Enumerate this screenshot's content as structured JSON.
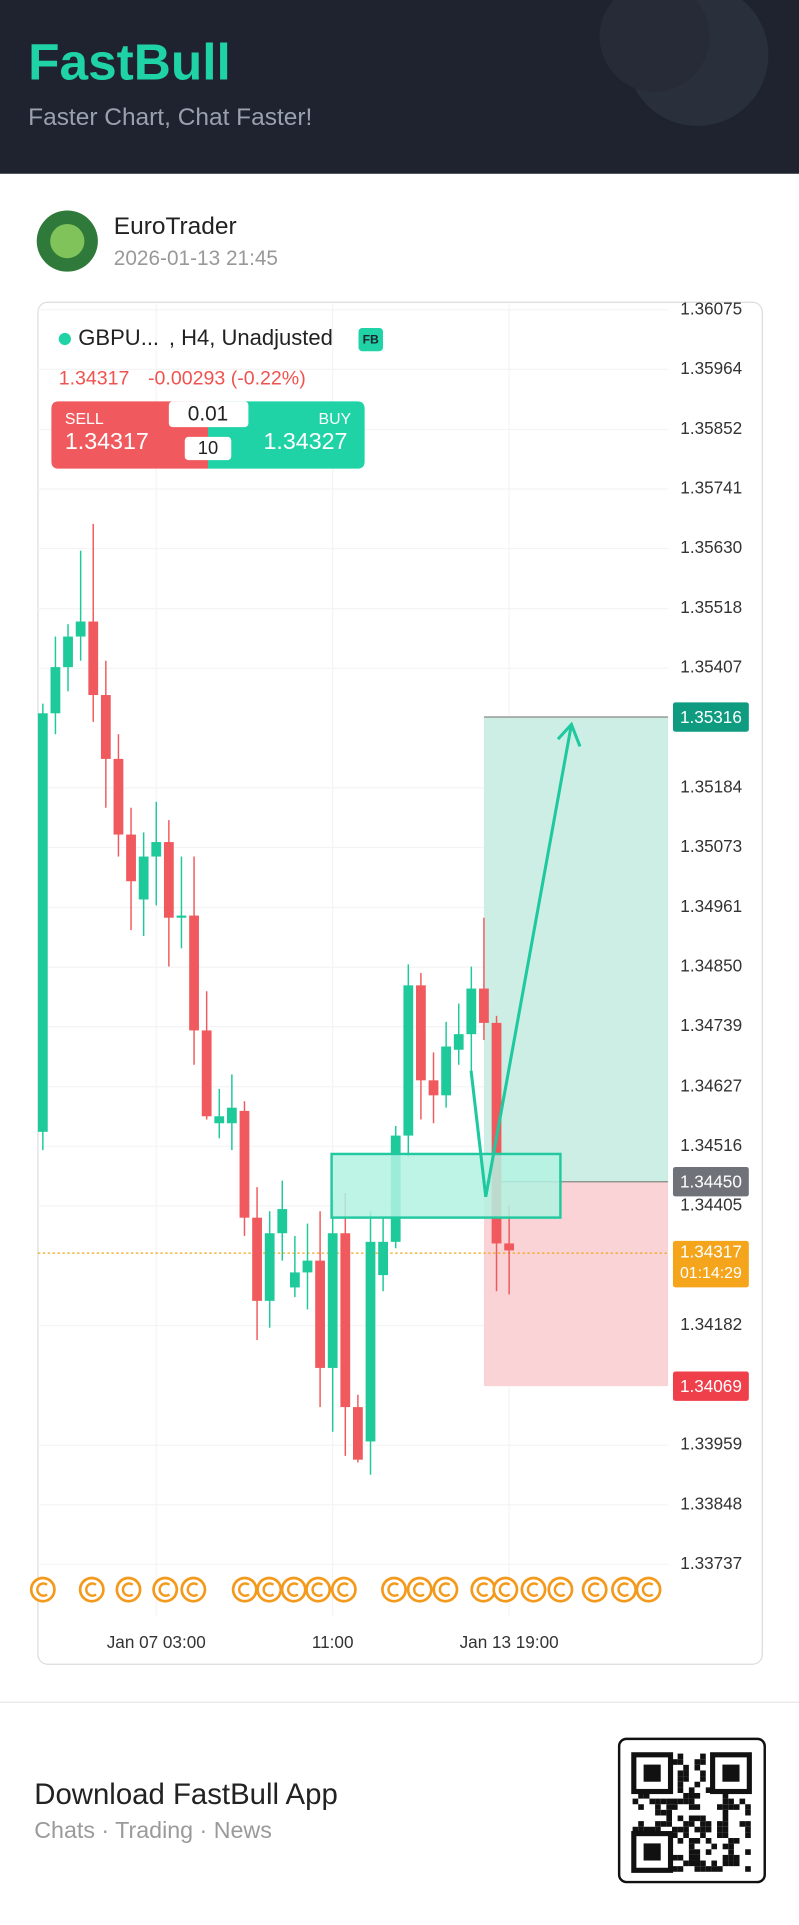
{
  "header": {
    "title": "FastBull",
    "subtitle": "Faster Chart, Chat Faster!"
  },
  "post": {
    "author": "EuroTrader",
    "time": "2026-01-13 21:45"
  },
  "chart_legend": {
    "symbol": "GBPU...",
    "settings": ", H4, Unadjusted",
    "badge": "FB",
    "price": "1.34317",
    "change": "-0.00293 (-0.22%)"
  },
  "trade": {
    "sell_label": "SELL",
    "sell_price": "1.34317",
    "lot": "0.01",
    "qty": "10",
    "buy_label": "BUY",
    "buy_price": "1.34327"
  },
  "chart_data": {
    "type": "candlestick",
    "categories": [
      null,
      null,
      null,
      null,
      null,
      null,
      null,
      null,
      null,
      "Jan 07 03:00",
      null,
      null,
      null,
      null,
      null,
      null,
      null,
      null,
      null,
      null,
      null,
      null,
      null,
      "11:00",
      null,
      null,
      null,
      null,
      null,
      null,
      null,
      null,
      null,
      null,
      null,
      null,
      null,
      "Jan 13 19:00"
    ],
    "open": [
      1.34543,
      1.35323,
      1.35409,
      1.35466,
      1.35494,
      1.35357,
      1.35238,
      1.35097,
      1.34976,
      1.35056,
      1.35083,
      1.34942,
      1.34946,
      1.34732,
      1.34559,
      1.34559,
      1.34582,
      1.34383,
      1.34228,
      1.34354,
      1.34253,
      1.34281,
      1.34303,
      1.34103,
      1.34354,
      1.3403,
      1.33966,
      1.34276,
      1.34338,
      1.34536,
      1.34816,
      1.34639,
      1.34611,
      1.34696,
      1.34725,
      1.3481,
      1.34746,
      1.34335
    ],
    "high": [
      1.35341,
      1.35466,
      1.35489,
      1.35626,
      1.35676,
      1.35421,
      1.35284,
      1.35147,
      1.35101,
      1.35158,
      1.35124,
      1.35056,
      1.35056,
      1.34805,
      1.34623,
      1.3465,
      1.346,
      1.3444,
      1.34395,
      1.34452,
      1.34349,
      1.34372,
      1.34395,
      1.34417,
      1.34429,
      1.34053,
      1.34395,
      1.34383,
      1.34554,
      1.34855,
      1.34839,
      1.34691,
      1.34748,
      1.34782,
      1.34851,
      1.34942,
      1.34759,
      1.34406
    ],
    "low": [
      1.34509,
      1.35284,
      1.35364,
      1.35421,
      1.35307,
      1.35147,
      1.35056,
      1.34919,
      1.34908,
      1.34965,
      1.34851,
      1.34885,
      1.34668,
      1.34566,
      1.34531,
      1.34509,
      1.34349,
      1.34155,
      1.34178,
      1.34303,
      1.34235,
      1.34212,
      1.3403,
      1.33984,
      1.33939,
      1.33927,
      1.33904,
      1.34246,
      1.34326,
      1.34497,
      1.34566,
      1.34559,
      1.34588,
      1.34668,
      1.34645,
      1.34714,
      1.34246,
      1.3424
    ],
    "close": [
      1.35323,
      1.35409,
      1.35466,
      1.35494,
      1.35357,
      1.35238,
      1.35097,
      1.3501,
      1.35056,
      1.35083,
      1.34942,
      1.34946,
      1.34732,
      1.34572,
      1.34572,
      1.34588,
      1.34383,
      1.34228,
      1.34354,
      1.34399,
      1.34281,
      1.34303,
      1.34103,
      1.34354,
      1.3403,
      1.33932,
      1.34338,
      1.34338,
      1.34536,
      1.34816,
      1.34639,
      1.34611,
      1.34702,
      1.34725,
      1.3481,
      1.34746,
      1.34335,
      1.34322
    ],
    "up_color": "#1ec99a",
    "down_color": "#f05a5e",
    "ylim": [
      1.33642,
      1.36089
    ],
    "yticks": [
      1.36075,
      1.35964,
      1.35852,
      1.35741,
      {
        "value": 1.3563,
        "label": "1.35630"
      },
      1.35518,
      1.35407,
      1.35184,
      1.35073,
      1.34961,
      {
        "value": 1.3485,
        "label": "1.34850"
      },
      1.34739,
      1.34627,
      1.34516,
      1.34405,
      1.34182,
      1.33959,
      1.33848,
      1.33737
    ],
    "grid": true,
    "price_labels": [
      {
        "value": 1.35316,
        "label": "1.35316",
        "color": "#0e9b80"
      },
      {
        "value": 1.3445,
        "label": "1.34450",
        "color": "#6f7279"
      },
      {
        "value": 1.34317,
        "label": "1.34317",
        "time": "01:14:29",
        "color": "#f4a51c"
      },
      {
        "value": 1.34069,
        "label": "1.34069",
        "color": "#ef3f4a"
      }
    ]
  },
  "footer": {
    "title": "Download FastBull App",
    "subtitle": "Chats · Trading · News"
  }
}
